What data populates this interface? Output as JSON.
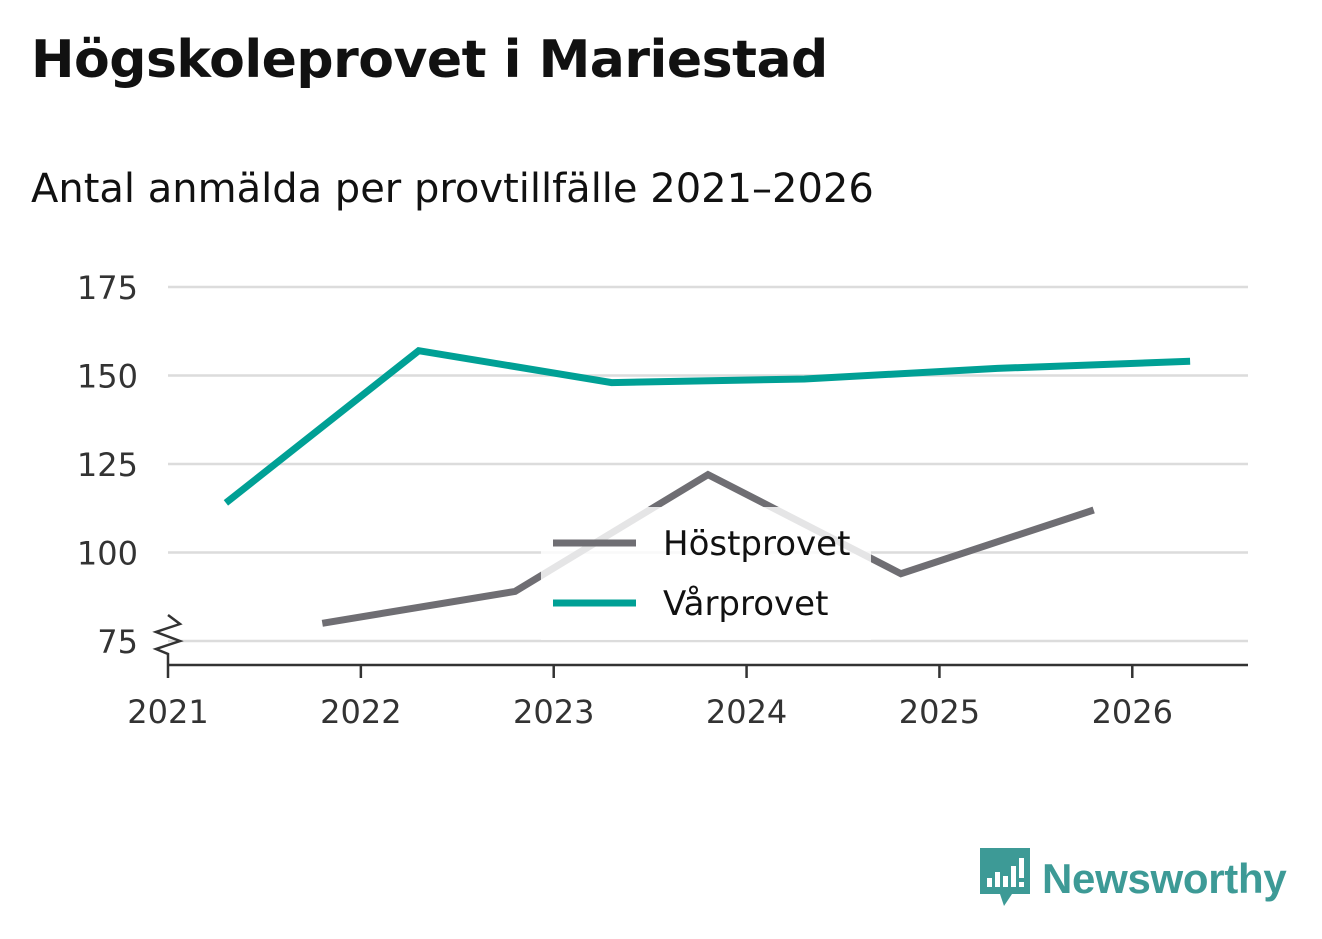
{
  "header": {
    "title": "Högskoleprovet i Mariestad",
    "subtitle": "Antal anmälda per provtillfälle 2021–2026"
  },
  "brand": {
    "name": "Newsworthy",
    "icon": "newsworthy-logo-icon",
    "color": "#3d9a96"
  },
  "chart_data": {
    "type": "line",
    "title": "Högskoleprovet i Mariestad",
    "subtitle": "Antal anmälda per provtillfälle 2021–2026",
    "xlabel": "",
    "ylabel": "",
    "xlim": [
      2021,
      2026.6
    ],
    "ylim": [
      75,
      175
    ],
    "y_axis_break": true,
    "x_ticks": [
      2021,
      2022,
      2023,
      2024,
      2025,
      2026
    ],
    "y_ticks": [
      75,
      100,
      125,
      150,
      175
    ],
    "grid": true,
    "legend_position": "center",
    "series": [
      {
        "name": "Höstprovet",
        "color": "#6f6e73",
        "x": [
          2021.8,
          2022.8,
          2023.8,
          2024.8,
          2025.8
        ],
        "y": [
          80,
          89,
          122,
          94,
          112
        ]
      },
      {
        "name": "Vårprovet",
        "color": "#00a095",
        "x": [
          2021.3,
          2022.3,
          2023.3,
          2024.3,
          2025.3,
          2026.3
        ],
        "y": [
          114,
          157,
          148,
          149,
          152,
          154
        ]
      }
    ]
  }
}
